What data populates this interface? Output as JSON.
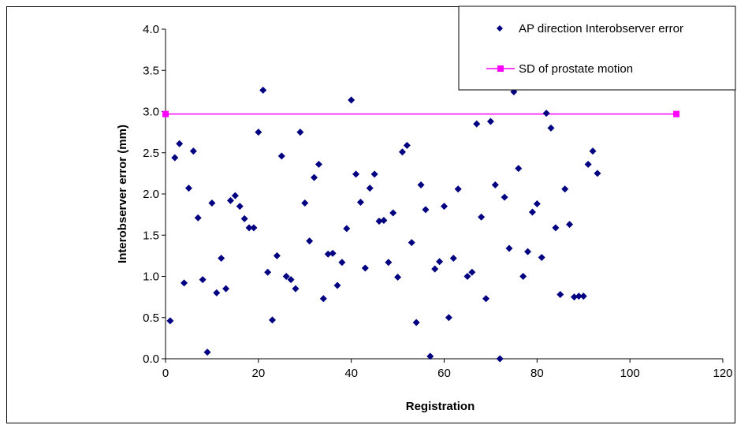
{
  "chart_data": {
    "type": "scatter",
    "xlabel": "Registration",
    "ylabel": "Interobserver error (mm)",
    "xlim": [
      0,
      120
    ],
    "ylim": [
      0,
      4.0
    ],
    "x_ticks": [
      "0",
      "20",
      "40",
      "60",
      "80",
      "100",
      "120"
    ],
    "y_ticks": [
      "0.0",
      "0.5",
      "1.0",
      "1.5",
      "2.0",
      "2.5",
      "3.0",
      "3.5",
      "4.0"
    ],
    "grid": false,
    "legend_position": "top-right",
    "series": [
      {
        "name": "AP direction Interobserver error",
        "marker": "diamond",
        "color": "#000080",
        "points": [
          [
            1,
            0.46
          ],
          [
            2,
            2.44
          ],
          [
            3,
            2.61
          ],
          [
            4,
            0.92
          ],
          [
            5,
            2.07
          ],
          [
            6,
            2.52
          ],
          [
            7,
            1.71
          ],
          [
            8,
            0.96
          ],
          [
            9,
            0.08
          ],
          [
            10,
            1.89
          ],
          [
            11,
            0.8
          ],
          [
            12,
            1.22
          ],
          [
            13,
            0.85
          ],
          [
            14,
            1.92
          ],
          [
            15,
            1.98
          ],
          [
            16,
            1.85
          ],
          [
            17,
            1.7
          ],
          [
            18,
            1.59
          ],
          [
            19,
            1.59
          ],
          [
            20,
            2.75
          ],
          [
            21,
            3.26
          ],
          [
            22,
            1.05
          ],
          [
            23,
            0.47
          ],
          [
            24,
            1.25
          ],
          [
            25,
            2.46
          ],
          [
            26,
            1.0
          ],
          [
            27,
            0.96
          ],
          [
            28,
            0.85
          ],
          [
            29,
            2.75
          ],
          [
            30,
            1.89
          ],
          [
            31,
            1.43
          ],
          [
            32,
            2.2
          ],
          [
            33,
            2.36
          ],
          [
            34,
            0.73
          ],
          [
            35,
            1.27
          ],
          [
            36,
            1.28
          ],
          [
            37,
            0.89
          ],
          [
            38,
            1.17
          ],
          [
            39,
            1.58
          ],
          [
            40,
            3.14
          ],
          [
            41,
            2.24
          ],
          [
            42,
            1.9
          ],
          [
            43,
            1.1
          ],
          [
            44,
            2.07
          ],
          [
            45,
            2.24
          ],
          [
            46,
            1.67
          ],
          [
            47,
            1.68
          ],
          [
            48,
            1.17
          ],
          [
            49,
            1.77
          ],
          [
            50,
            0.99
          ],
          [
            51,
            2.51
          ],
          [
            52,
            2.59
          ],
          [
            53,
            1.41
          ],
          [
            54,
            0.44
          ],
          [
            55,
            2.11
          ],
          [
            56,
            1.81
          ],
          [
            57,
            0.03
          ],
          [
            58,
            1.09
          ],
          [
            59,
            1.18
          ],
          [
            60,
            1.85
          ],
          [
            61,
            0.5
          ],
          [
            62,
            1.22
          ],
          [
            63,
            2.06
          ],
          [
            65,
            1.0
          ],
          [
            66,
            1.05
          ],
          [
            67,
            2.85
          ],
          [
            68,
            1.72
          ],
          [
            69,
            0.73
          ],
          [
            70,
            2.88
          ],
          [
            71,
            2.11
          ],
          [
            72,
            0.0
          ],
          [
            73,
            1.96
          ],
          [
            74,
            1.34
          ],
          [
            75,
            3.24
          ],
          [
            76,
            2.31
          ],
          [
            77,
            1.0
          ],
          [
            78,
            1.3
          ],
          [
            79,
            1.78
          ],
          [
            80,
            1.88
          ],
          [
            81,
            1.23
          ],
          [
            82,
            2.98
          ],
          [
            83,
            2.8
          ],
          [
            84,
            1.59
          ],
          [
            85,
            0.78
          ],
          [
            86,
            2.06
          ],
          [
            87,
            1.63
          ],
          [
            88,
            0.75
          ],
          [
            89,
            0.76
          ],
          [
            90,
            0.76
          ],
          [
            91,
            2.36
          ],
          [
            92,
            2.52
          ],
          [
            93,
            2.25
          ]
        ]
      },
      {
        "name": "SD of prostate motion",
        "marker": "square",
        "color": "#FF00FF",
        "points": [
          [
            0,
            2.97
          ],
          [
            110,
            2.97
          ]
        ]
      }
    ]
  }
}
